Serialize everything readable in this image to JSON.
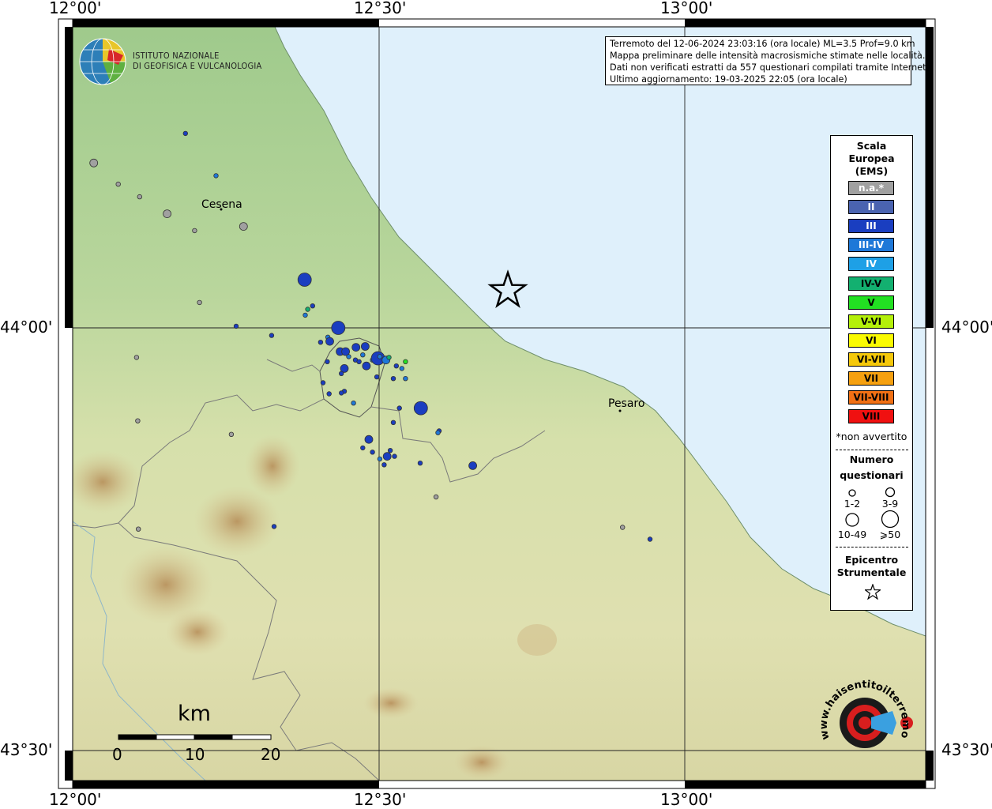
{
  "axes": {
    "top_labels": [
      "12°00'",
      "12°30'",
      "13°00'"
    ],
    "bottom_labels": [
      "12°00'",
      "12°30'",
      "13°00'"
    ],
    "left_labels": [
      "44°00'",
      "43°30'"
    ],
    "right_labels": [
      "44°00'",
      "43°30'"
    ]
  },
  "institute": {
    "line1": "ISTITUTO NAZIONALE",
    "line2": "DI GEOFISICA E VULCANOLOGIA"
  },
  "info": {
    "line1": "Terremoto del 12-06-2024 23:03:16 (ora locale) ML=3.5 Prof=9.0 km",
    "line2": "Mappa preliminare delle intensità macrosismiche stimate nelle località.",
    "line3": "Dati non verificati estratti da 557 questionari compilati tramite Internet.",
    "line4": "Ultimo aggiornamento: 19-03-2025 22:05 (ora locale)"
  },
  "cities": {
    "cesena": "Cesena",
    "pesaro": "Pesaro"
  },
  "legend": {
    "title1": "Scala",
    "title2": "Europea",
    "title3": "(EMS)",
    "classes": [
      {
        "label": "n.a.*",
        "color": "#a0a0a0",
        "text": "#ffffff"
      },
      {
        "label": "II",
        "color": "#4a63b0",
        "text": "#ffffff"
      },
      {
        "label": "III",
        "color": "#1a3ec0",
        "text": "#ffffff"
      },
      {
        "label": "III-IV",
        "color": "#1e78d8",
        "text": "#ffffff"
      },
      {
        "label": "IV",
        "color": "#1ea0e6",
        "text": "#ffffff"
      },
      {
        "label": "IV-V",
        "color": "#13b070",
        "text": "#000000"
      },
      {
        "label": "V",
        "color": "#22e022",
        "text": "#000000"
      },
      {
        "label": "V-VI",
        "color": "#b4f00a",
        "text": "#000000"
      },
      {
        "label": "VI",
        "color": "#fafa00",
        "text": "#000000"
      },
      {
        "label": "VI-VII",
        "color": "#f5c80a",
        "text": "#000000"
      },
      {
        "label": "VII",
        "color": "#f5a010",
        "text": "#000000"
      },
      {
        "label": "VII-VIII",
        "color": "#f07014",
        "text": "#000000"
      },
      {
        "label": "VIII",
        "color": "#f01010",
        "text": "#000000"
      }
    ],
    "note": "*non avvertito",
    "count_title1": "Numero",
    "count_title2": "questionari",
    "count_1": "1-2",
    "count_2": "3-9",
    "count_3": "10-49",
    "count_4": "⩾50",
    "epi_title1": "Epicentro",
    "epi_title2": "Strumentale"
  },
  "scalebar": {
    "unit": "km",
    "ticks": [
      "0",
      "10",
      "20"
    ]
  },
  "website": "www.haisentitoilterremoto.it",
  "colors": {
    "sea": "#dff0fb",
    "land_low": "#a9cf92",
    "land_mid": "#dfe3b0",
    "land_high": "#c9a46a"
  },
  "observations": [
    {
      "lon": 12.2,
      "lat": 44.23,
      "intensity": "III",
      "count": "1-2"
    },
    {
      "lon": 12.05,
      "lat": 44.195,
      "intensity": "n.a.",
      "count": "3-9"
    },
    {
      "lon": 12.09,
      "lat": 44.17,
      "intensity": "n.a.",
      "count": "1-2"
    },
    {
      "lon": 12.125,
      "lat": 44.155,
      "intensity": "n.a.",
      "count": "1-2"
    },
    {
      "lon": 12.17,
      "lat": 44.135,
      "intensity": "n.a.",
      "count": "3-9"
    },
    {
      "lon": 12.25,
      "lat": 44.18,
      "intensity": "III-IV",
      "count": "1-2"
    },
    {
      "lon": 12.215,
      "lat": 44.115,
      "intensity": "n.a.",
      "count": "1-2"
    },
    {
      "lon": 12.295,
      "lat": 44.12,
      "intensity": "n.a.",
      "count": "3-9"
    },
    {
      "lon": 12.223,
      "lat": 44.03,
      "intensity": "n.a.",
      "count": "1-2"
    },
    {
      "lon": 12.283,
      "lat": 44.002,
      "intensity": "III",
      "count": "1-2"
    },
    {
      "lon": 12.395,
      "lat": 44.057,
      "intensity": "III",
      "count": "10-49"
    },
    {
      "lon": 12.408,
      "lat": 44.026,
      "intensity": "III",
      "count": "1-2"
    },
    {
      "lon": 12.396,
      "lat": 44.015,
      "intensity": "III-IV",
      "count": "1-2"
    },
    {
      "lon": 12.4,
      "lat": 44.022,
      "intensity": "IV-V",
      "count": "1-2"
    },
    {
      "lon": 12.45,
      "lat": 44.0,
      "intensity": "III",
      "count": "10-49"
    },
    {
      "lon": 12.341,
      "lat": 43.991,
      "intensity": "III",
      "count": "1-2"
    },
    {
      "lon": 12.433,
      "lat": 43.989,
      "intensity": "III-IV",
      "count": "1-2"
    },
    {
      "lon": 12.436,
      "lat": 43.984,
      "intensity": "III",
      "count": "3-9"
    },
    {
      "lon": 12.453,
      "lat": 43.972,
      "intensity": "III",
      "count": "3-9"
    },
    {
      "lon": 12.462,
      "lat": 43.972,
      "intensity": "III",
      "count": "3-9"
    },
    {
      "lon": 12.479,
      "lat": 43.977,
      "intensity": "III",
      "count": "3-9"
    },
    {
      "lon": 12.467,
      "lat": 43.966,
      "intensity": "III-IV",
      "count": "1-2"
    },
    {
      "lon": 12.478,
      "lat": 43.962,
      "intensity": "III",
      "count": "1-2"
    },
    {
      "lon": 12.484,
      "lat": 43.96,
      "intensity": "III",
      "count": "1-2"
    },
    {
      "lon": 12.49,
      "lat": 43.968,
      "intensity": "III-IV",
      "count": "1-2"
    },
    {
      "lon": 12.494,
      "lat": 43.978,
      "intensity": "III",
      "count": "3-9"
    },
    {
      "lon": 12.506,
      "lat": 43.962,
      "intensity": "III-IV",
      "count": "1-2"
    },
    {
      "lon": 12.515,
      "lat": 43.964,
      "intensity": "III",
      "count": "10-49"
    },
    {
      "lon": 12.518,
      "lat": 43.966,
      "intensity": "III-IV",
      "count": "1-2"
    },
    {
      "lon": 12.528,
      "lat": 43.962,
      "intensity": "III-IV",
      "count": "3-9"
    },
    {
      "lon": 12.533,
      "lat": 43.965,
      "intensity": "IV-V",
      "count": "1-2"
    },
    {
      "lon": 12.545,
      "lat": 43.955,
      "intensity": "III",
      "count": "1-2"
    },
    {
      "lon": 12.554,
      "lat": 43.952,
      "intensity": "III-IV",
      "count": "1-2"
    },
    {
      "lon": 12.56,
      "lat": 43.96,
      "intensity": "V",
      "count": "1-2"
    },
    {
      "lon": 12.421,
      "lat": 43.983,
      "intensity": "III",
      "count": "1-2"
    },
    {
      "lon": 12.432,
      "lat": 43.96,
      "intensity": "III",
      "count": "1-2"
    },
    {
      "lon": 12.46,
      "lat": 43.952,
      "intensity": "III",
      "count": "3-9"
    },
    {
      "lon": 12.455,
      "lat": 43.946,
      "intensity": "III",
      "count": "1-2"
    },
    {
      "lon": 12.496,
      "lat": 43.955,
      "intensity": "III",
      "count": "3-9"
    },
    {
      "lon": 12.513,
      "lat": 43.942,
      "intensity": "III",
      "count": "1-2"
    },
    {
      "lon": 12.54,
      "lat": 43.94,
      "intensity": "III",
      "count": "1-2"
    },
    {
      "lon": 12.56,
      "lat": 43.94,
      "intensity": "III-IV",
      "count": "1-2"
    },
    {
      "lon": 12.425,
      "lat": 43.935,
      "intensity": "III",
      "count": "1-2"
    },
    {
      "lon": 12.435,
      "lat": 43.922,
      "intensity": "III",
      "count": "1-2"
    },
    {
      "lon": 12.46,
      "lat": 43.925,
      "intensity": "III",
      "count": "1-2"
    },
    {
      "lon": 12.455,
      "lat": 43.923,
      "intensity": "III",
      "count": "1-2"
    },
    {
      "lon": 12.475,
      "lat": 43.911,
      "intensity": "III-IV",
      "count": "1-2"
    },
    {
      "lon": 12.55,
      "lat": 43.905,
      "intensity": "III",
      "count": "1-2"
    },
    {
      "lon": 12.585,
      "lat": 43.905,
      "intensity": "III",
      "count": "10-49"
    },
    {
      "lon": 12.615,
      "lat": 43.878,
      "intensity": "III",
      "count": "1-2"
    },
    {
      "lon": 12.613,
      "lat": 43.876,
      "intensity": "III-IV",
      "count": "1-2"
    },
    {
      "lon": 12.54,
      "lat": 43.888,
      "intensity": "III",
      "count": "1-2"
    },
    {
      "lon": 12.5,
      "lat": 43.868,
      "intensity": "III",
      "count": "3-9"
    },
    {
      "lon": 12.49,
      "lat": 43.858,
      "intensity": "III",
      "count": "1-2"
    },
    {
      "lon": 12.506,
      "lat": 43.853,
      "intensity": "III",
      "count": "1-2"
    },
    {
      "lon": 12.535,
      "lat": 43.855,
      "intensity": "III",
      "count": "1-2"
    },
    {
      "lon": 12.53,
      "lat": 43.848,
      "intensity": "III",
      "count": "3-9"
    },
    {
      "lon": 12.518,
      "lat": 43.845,
      "intensity": "III-IV",
      "count": "1-2"
    },
    {
      "lon": 12.542,
      "lat": 43.848,
      "intensity": "III",
      "count": "1-2"
    },
    {
      "lon": 12.525,
      "lat": 43.838,
      "intensity": "III",
      "count": "1-2"
    },
    {
      "lon": 12.584,
      "lat": 43.84,
      "intensity": "III",
      "count": "1-2"
    },
    {
      "lon": 12.67,
      "lat": 43.837,
      "intensity": "III",
      "count": "3-9"
    },
    {
      "lon": 12.275,
      "lat": 43.874,
      "intensity": "n.a.",
      "count": "1-2"
    },
    {
      "lon": 12.61,
      "lat": 43.8,
      "intensity": "n.a.",
      "count": "1-2"
    },
    {
      "lon": 12.345,
      "lat": 43.765,
      "intensity": "III",
      "count": "1-2"
    },
    {
      "lon": 12.123,
      "lat": 43.762,
      "intensity": "n.a.",
      "count": "1-2"
    },
    {
      "lon": 12.915,
      "lat": 43.764,
      "intensity": "n.a.",
      "count": "1-2"
    },
    {
      "lon": 12.96,
      "lat": 43.75,
      "intensity": "III",
      "count": "1-2"
    },
    {
      "lon": 12.12,
      "lat": 43.965,
      "intensity": "n.a.",
      "count": "1-2"
    },
    {
      "lon": 12.122,
      "lat": 43.89,
      "intensity": "n.a.",
      "count": "1-2"
    }
  ]
}
